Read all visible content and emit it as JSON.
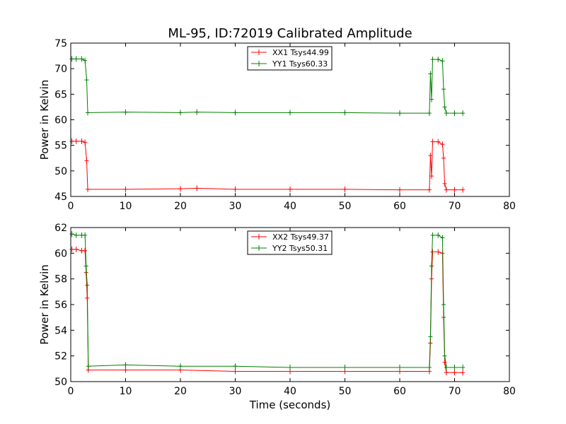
{
  "chart_data": [
    {
      "type": "line",
      "title": "ML-95, ID:72019 Calibrated Amplitude",
      "xlabel": "",
      "ylabel": "Power in Kelvin",
      "xlim": [
        0,
        80
      ],
      "ylim": [
        45,
        75
      ],
      "xticks": [
        0,
        10,
        20,
        30,
        40,
        50,
        60,
        70,
        80
      ],
      "yticks": [
        45,
        50,
        55,
        60,
        65,
        70,
        75
      ],
      "grid": false,
      "legend": "top-center",
      "series": [
        {
          "name": "XX1 Tsys44.99",
          "color": "#ff0000",
          "x": [
            0.2,
            1,
            2,
            2.6,
            2.9,
            3.1,
            10,
            20,
            23,
            30,
            40,
            50,
            60,
            65.4,
            65.6,
            65.8,
            66.0,
            67.0,
            67.8,
            68.0,
            68.2,
            68.5,
            70,
            71.5
          ],
          "y": [
            55.8,
            55.8,
            55.8,
            55.6,
            52.0,
            46.4,
            46.4,
            46.5,
            46.6,
            46.4,
            46.4,
            46.4,
            46.3,
            46.3,
            53.0,
            49.0,
            55.7,
            55.7,
            55.2,
            52.5,
            47.5,
            46.3,
            46.3,
            46.3
          ]
        },
        {
          "name": "YY1 Tsys60.33",
          "color": "#008000",
          "x": [
            0.2,
            1,
            2,
            2.6,
            2.9,
            3.1,
            10,
            20,
            23,
            30,
            40,
            50,
            60,
            65.4,
            65.6,
            65.8,
            66.0,
            67.0,
            67.8,
            68.0,
            68.2,
            68.5,
            70,
            71.5
          ],
          "y": [
            71.9,
            71.9,
            71.9,
            71.6,
            67.8,
            61.4,
            61.5,
            61.4,
            61.5,
            61.4,
            61.4,
            61.4,
            61.3,
            61.3,
            69.0,
            64.0,
            71.8,
            71.8,
            71.5,
            66.0,
            62.5,
            61.3,
            61.3,
            61.3
          ]
        }
      ]
    },
    {
      "type": "line",
      "title": "",
      "xlabel": "Time (seconds)",
      "ylabel": "Power in Kelvin",
      "xlim": [
        0,
        80
      ],
      "ylim": [
        50,
        62
      ],
      "xticks": [
        0,
        10,
        20,
        30,
        40,
        50,
        60,
        70,
        80
      ],
      "yticks": [
        50,
        52,
        54,
        56,
        58,
        60,
        62
      ],
      "grid": false,
      "legend": "top-center",
      "series": [
        {
          "name": "XX2 Tsys49.37",
          "color": "#ff0000",
          "x": [
            0.2,
            1,
            2,
            2.6,
            2.8,
            3.0,
            3.2,
            10,
            20,
            30,
            40,
            50,
            60,
            65.4,
            65.6,
            65.8,
            66.0,
            67.0,
            67.8,
            68.0,
            68.2,
            68.5,
            70,
            71.5
          ],
          "y": [
            60.3,
            60.3,
            60.2,
            60.2,
            58.5,
            56.5,
            50.9,
            50.9,
            50.9,
            50.8,
            50.8,
            50.8,
            50.8,
            50.8,
            53.0,
            58.0,
            60.1,
            60.1,
            60.0,
            55.0,
            51.5,
            50.7,
            50.7,
            50.7
          ]
        },
        {
          "name": "YY2 Tsys50.31",
          "color": "#008000",
          "x": [
            0.2,
            1,
            2,
            2.6,
            2.8,
            3.0,
            3.2,
            10,
            20,
            30,
            40,
            50,
            60,
            65.4,
            65.6,
            65.8,
            66.0,
            67.0,
            67.8,
            68.0,
            68.2,
            68.5,
            70,
            71.5
          ],
          "y": [
            61.5,
            61.4,
            61.4,
            61.4,
            59.0,
            57.5,
            51.2,
            51.3,
            51.2,
            51.2,
            51.1,
            51.1,
            51.1,
            51.1,
            53.5,
            59.0,
            61.4,
            61.4,
            61.2,
            56.0,
            52.0,
            51.1,
            51.1,
            51.1
          ]
        }
      ]
    }
  ]
}
